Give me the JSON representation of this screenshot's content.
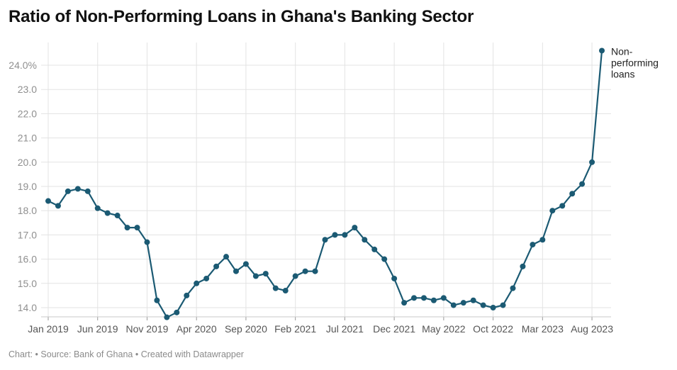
{
  "title": "Ratio of Non-Performing Loans in Ghana's Banking Sector",
  "footer": {
    "chart_label": "Chart:",
    "sep1": "•",
    "source": "Source: Bank of Ghana",
    "sep2": "•",
    "credit": "Created with Datawrapper"
  },
  "colors": {
    "line": "#1b5a73",
    "grid": "#e3e3e3",
    "tick_text": "#8f8f8f",
    "x_text": "#555555"
  },
  "chart_data": {
    "type": "line",
    "title": "Ratio of Non-Performing Loans in Ghana's Banking Sector",
    "ylim": [
      13.6,
      24.8
    ],
    "y_ticks": [
      14.0,
      15.0,
      16.0,
      17.0,
      18.0,
      19.0,
      20.0,
      21.0,
      22.0,
      23.0,
      24.0
    ],
    "y_tick_labels": [
      "14.0",
      "15.0",
      "16.0",
      "17.0",
      "18.0",
      "19.0",
      "20.0",
      "21.0",
      "22.0",
      "23.0",
      "24.0%"
    ],
    "x_tick_labels": [
      "Jan 2019",
      "Jun 2019",
      "Nov 2019",
      "Apr 2020",
      "Sep 2020",
      "Feb 2021",
      "Jul 2021",
      "Dec 2021",
      "May 2022",
      "Oct 2022",
      "Mar 2023",
      "Aug 2023"
    ],
    "x_tick_index": [
      0,
      5,
      10,
      15,
      20,
      25,
      30,
      35,
      40,
      45,
      50,
      55
    ],
    "grid": true,
    "series": [
      {
        "name": "Non-performing loans",
        "label_lines": [
          "Non-",
          "performing",
          "loans"
        ],
        "values": [
          18.4,
          18.2,
          18.8,
          18.9,
          18.8,
          18.1,
          17.9,
          17.8,
          17.3,
          17.3,
          16.7,
          14.3,
          13.6,
          13.8,
          14.5,
          15.0,
          15.2,
          15.7,
          16.1,
          15.5,
          15.8,
          15.3,
          15.4,
          14.8,
          14.7,
          15.3,
          15.5,
          15.5,
          16.8,
          17.0,
          17.0,
          17.3,
          16.8,
          16.4,
          16.0,
          15.2,
          14.2,
          14.4,
          14.4,
          14.3,
          14.4,
          14.1,
          14.2,
          14.3,
          14.1,
          14.0,
          14.1,
          14.8,
          15.7,
          16.6,
          16.8,
          18.0,
          18.2,
          18.7,
          19.1,
          20.0,
          24.6
        ]
      }
    ]
  }
}
